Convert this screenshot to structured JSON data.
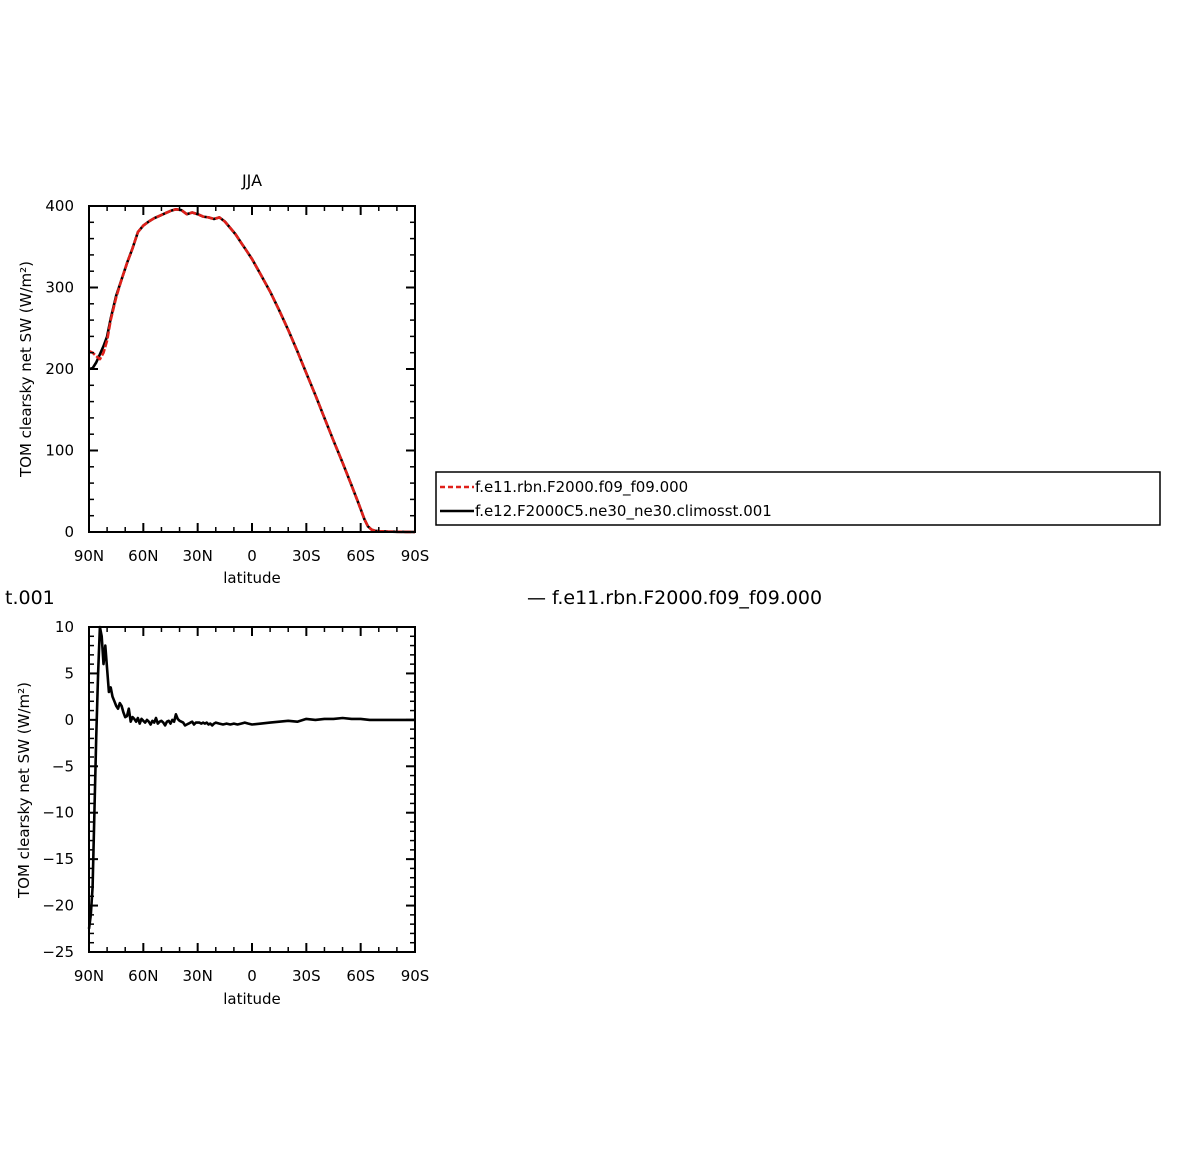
{
  "stray_labels": {
    "left": "t.001",
    "right": "— f.e11.rbn.F2000.f09_f09.000"
  },
  "chart_data": [
    {
      "type": "line",
      "title": "JJA",
      "xlabel": "latitude",
      "ylabel": "TOM clearsky net SW (W/m²)",
      "xlim": [
        90,
        -90
      ],
      "ylim": [
        0,
        400
      ],
      "x_ticks": [
        90,
        60,
        30,
        0,
        -30,
        -60,
        -90
      ],
      "x_tick_labels": [
        "90N",
        "60N",
        "30N",
        "0",
        "30S",
        "60S",
        "90S"
      ],
      "y_ticks": [
        0,
        100,
        200,
        300,
        400
      ],
      "y_tick_labels": [
        "0",
        "100",
        "200",
        "300",
        "400"
      ],
      "grid": false,
      "legend": "right",
      "series": [
        {
          "name": "f.e12.F2000C5.ne30_ne30.climosst.001",
          "color": "#000000",
          "dash": "solid",
          "x": [
            90,
            88,
            86,
            84,
            82,
            80,
            78,
            75,
            72,
            69,
            66,
            63,
            60,
            57,
            54,
            51,
            48,
            45,
            42,
            39,
            36,
            33,
            30,
            27,
            24,
            21,
            18,
            15,
            12,
            9,
            6,
            3,
            0,
            -5,
            -10,
            -15,
            -20,
            -25,
            -30,
            -35,
            -40,
            -45,
            -50,
            -55,
            -58,
            -60,
            -62,
            -64,
            -66,
            -68,
            -70,
            -75,
            -80,
            -85,
            -90
          ],
          "y": [
            200,
            201,
            208,
            218,
            228,
            240,
            262,
            290,
            310,
            330,
            348,
            368,
            376,
            381,
            385,
            388,
            391,
            394,
            396,
            395,
            390,
            392,
            390,
            387,
            386,
            384,
            386,
            381,
            373,
            365,
            355,
            345,
            335,
            315,
            295,
            272,
            248,
            222,
            195,
            168,
            140,
            112,
            85,
            57,
            40,
            28,
            16,
            7,
            3,
            1.5,
            1,
            0.5,
            0.2,
            0.1,
            0
          ]
        },
        {
          "name": "f.e11.rbn.F2000.f09_f09.000",
          "color": "#e0201a",
          "dash": "dashed",
          "x": [
            90,
            88,
            86,
            84,
            82,
            80,
            78,
            75,
            72,
            69,
            66,
            63,
            60,
            57,
            54,
            51,
            48,
            45,
            42,
            39,
            36,
            33,
            30,
            27,
            24,
            21,
            18,
            15,
            12,
            9,
            6,
            3,
            0,
            -5,
            -10,
            -15,
            -20,
            -25,
            -30,
            -35,
            -40,
            -45,
            -50,
            -55,
            -58,
            -60,
            -62,
            -64,
            -66,
            -68,
            -70,
            -75,
            -80,
            -85,
            -90
          ],
          "y": [
            222,
            220,
            216,
            212,
            220,
            235,
            260,
            288,
            310,
            330,
            348,
            368,
            376,
            381,
            385,
            388,
            391,
            394,
            396,
            395,
            390,
            392,
            390,
            387,
            386,
            384,
            386,
            381,
            373,
            365,
            355,
            345,
            335,
            315,
            295,
            272,
            248,
            222,
            195,
            168,
            140,
            112,
            85,
            57,
            40,
            28,
            16,
            7,
            3,
            1.5,
            1,
            0.5,
            0.2,
            0.1,
            0
          ]
        }
      ]
    },
    {
      "type": "line",
      "title": "",
      "xlabel": "latitude",
      "ylabel": "TOM clearsky net SW (W/m²)",
      "xlim": [
        90,
        -90
      ],
      "ylim": [
        -25,
        10
      ],
      "x_ticks": [
        90,
        60,
        30,
        0,
        -30,
        -60,
        -90
      ],
      "x_tick_labels": [
        "90N",
        "60N",
        "30N",
        "0",
        "30S",
        "60S",
        "90S"
      ],
      "y_ticks": [
        -25,
        -20,
        -15,
        -10,
        -5,
        0,
        5,
        10
      ],
      "y_tick_labels": [
        "−25",
        "−20",
        "−15",
        "−10",
        "−5",
        "0",
        "5",
        "10"
      ],
      "grid": false,
      "series": [
        {
          "color": "#000000",
          "dash": "solid",
          "x": [
            90,
            89,
            88,
            87,
            86,
            85,
            84,
            83,
            82,
            81,
            80,
            79,
            78,
            77,
            76,
            75,
            74,
            73,
            72,
            71,
            70,
            69,
            68,
            67,
            66,
            65,
            64,
            63,
            62,
            61,
            60,
            59,
            58,
            57,
            56,
            55,
            54,
            53,
            52,
            51,
            50,
            49,
            48,
            47,
            46,
            45,
            44,
            43,
            42,
            41,
            40,
            39,
            38,
            37,
            36,
            35,
            34,
            33,
            32,
            31,
            30,
            29,
            28,
            27,
            26,
            25,
            24,
            23,
            22,
            21,
            20,
            18,
            16,
            14,
            12,
            10,
            8,
            6,
            4,
            2,
            0,
            -5,
            -10,
            -15,
            -20,
            -25,
            -30,
            -35,
            -40,
            -45,
            -50,
            -55,
            -60,
            -65,
            -70,
            -75,
            -80,
            -85,
            -90
          ],
          "y": [
            -22.5,
            -21,
            -18,
            -10,
            -2,
            5,
            10,
            9,
            6,
            8,
            5.5,
            3,
            3.5,
            2.5,
            2,
            1.5,
            1.2,
            1.8,
            1.5,
            0.8,
            0.3,
            0.4,
            1.2,
            -0.2,
            0.3,
            0.1,
            -0.2,
            0.2,
            -0.4,
            0.1,
            -0.1,
            -0.3,
            0,
            -0.2,
            -0.5,
            -0.1,
            -0.3,
            0.2,
            -0.4,
            -0.2,
            -0.1,
            -0.3,
            -0.6,
            -0.2,
            -0.1,
            -0.4,
            0,
            -0.2,
            0.6,
            0.1,
            -0.1,
            -0.2,
            -0.3,
            -0.6,
            -0.5,
            -0.4,
            -0.3,
            -0.2,
            -0.5,
            -0.3,
            -0.3,
            -0.3,
            -0.4,
            -0.3,
            -0.4,
            -0.3,
            -0.5,
            -0.4,
            -0.6,
            -0.4,
            -0.3,
            -0.4,
            -0.5,
            -0.4,
            -0.5,
            -0.4,
            -0.5,
            -0.4,
            -0.3,
            -0.4,
            -0.5,
            -0.4,
            -0.3,
            -0.2,
            -0.1,
            -0.2,
            0.1,
            0,
            0.1,
            0.1,
            0.2,
            0.1,
            0.1,
            0,
            0,
            0,
            0,
            0,
            0
          ]
        }
      ]
    }
  ]
}
